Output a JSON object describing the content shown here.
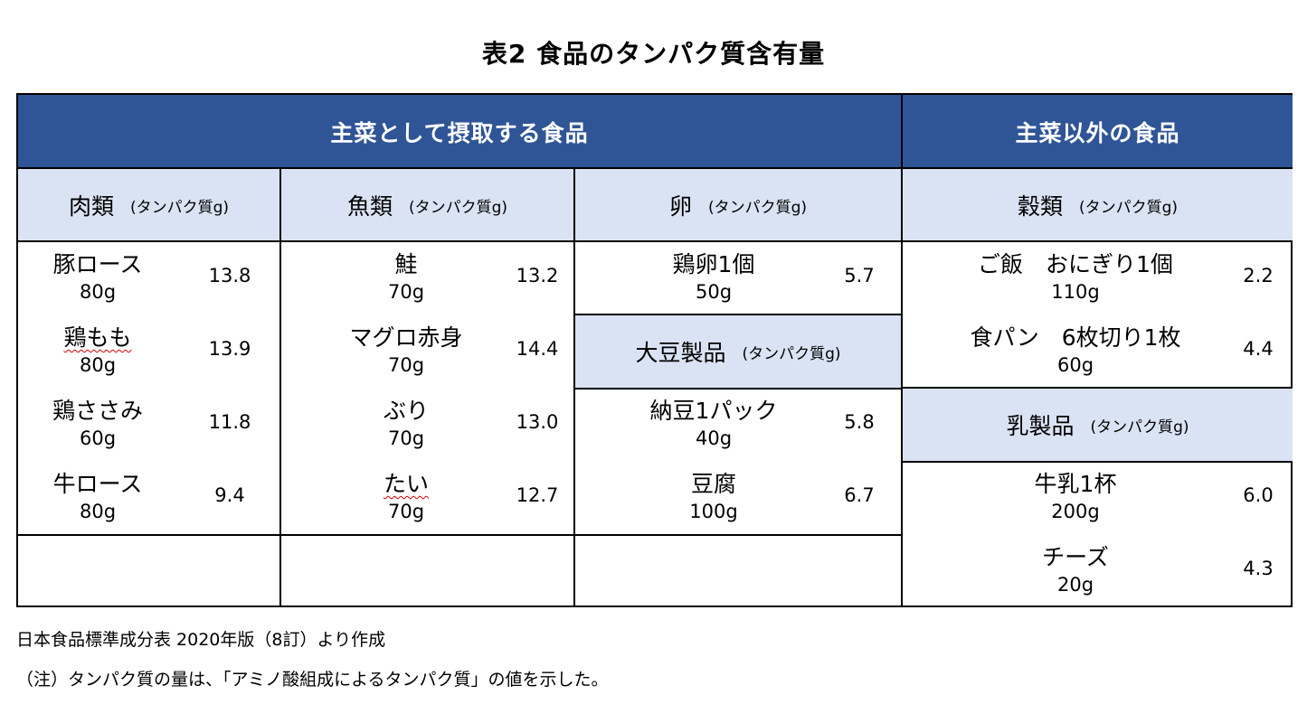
{
  "title": "表2 食品のタンパク質含有量",
  "colors": {
    "band": "#2f5597",
    "subheader": "#dae3f3",
    "spellcheck": "#d40000"
  },
  "headers": {
    "main": "主菜として摂取する食品",
    "other": "主菜以外の食品"
  },
  "unit": "(タンパク質g)",
  "categories": {
    "meat": "肉類",
    "fish": "魚類",
    "egg": "卵",
    "soy": "大豆製品",
    "grain": "穀類",
    "dairy": "乳製品"
  },
  "meat": [
    {
      "name": "豚ロース",
      "amount": "80g",
      "value": "13.8"
    },
    {
      "name": "鶏もも",
      "amount": "80g",
      "value": "13.9"
    },
    {
      "name": "鶏ささみ",
      "amount": "60g",
      "value": "11.8"
    },
    {
      "name": "牛ロース",
      "amount": "80g",
      "value": "9.4"
    }
  ],
  "fish": [
    {
      "name": "鮭",
      "amount": "70g",
      "value": "13.2"
    },
    {
      "name": "マグロ赤身",
      "amount": "70g",
      "value": "14.4"
    },
    {
      "name": "ぶり",
      "amount": "70g",
      "value": "13.0"
    },
    {
      "name": "たい",
      "amount": "70g",
      "value": "12.7"
    }
  ],
  "egg": [
    {
      "name": "鶏卵1個",
      "amount": "50g",
      "value": "5.7"
    }
  ],
  "soy": [
    {
      "name": "納豆1パック",
      "amount": "40g",
      "value": "5.8"
    },
    {
      "name": "豆腐",
      "amount": "100g",
      "value": "6.7"
    }
  ],
  "grain": [
    {
      "name": "ご飯　おにぎり1個",
      "amount": "110g",
      "value": "2.2"
    },
    {
      "name": "食パン　6枚切り1枚",
      "amount": "60g",
      "value": "4.4"
    }
  ],
  "dairy": [
    {
      "name": "牛乳1杯",
      "amount": "200g",
      "value": "6.0"
    },
    {
      "name": "チーズ",
      "amount": "20g",
      "value": "4.3"
    }
  ],
  "notes": {
    "source": "日本食品標準成分表 2020年版（8訂）より作成",
    "remark": "（注）タンパク質の量は、「アミノ酸組成によるタンパク質」の値を示した。"
  }
}
